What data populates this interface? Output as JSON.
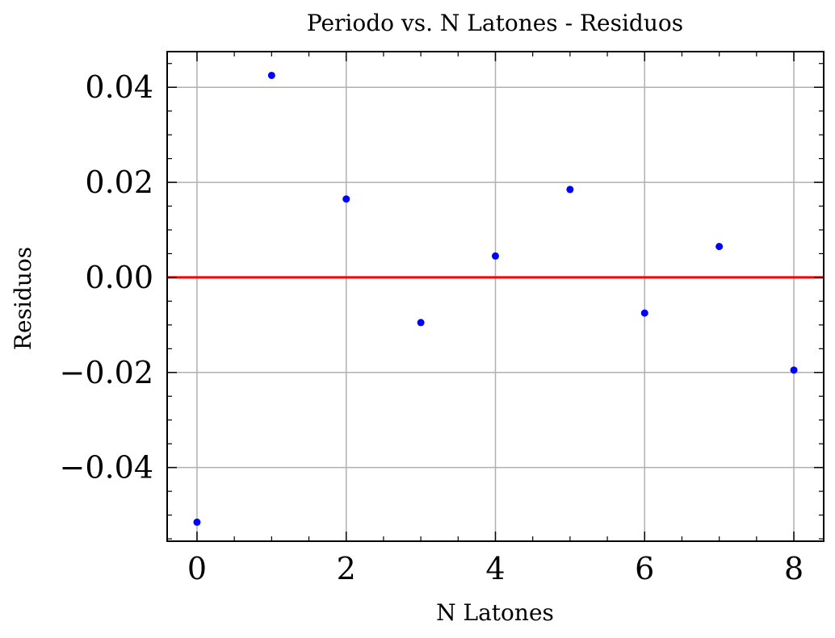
{
  "chart_data": {
    "type": "scatter",
    "title": "Periodo vs. N Latones - Residuos",
    "xlabel": "N Latones",
    "ylabel": "Residuos",
    "xlim": [
      -0.4,
      8.4
    ],
    "ylim": [
      -0.0555,
      0.0475
    ],
    "xticks": [
      0,
      2,
      4,
      6,
      8
    ],
    "xtick_labels": [
      "0",
      "2",
      "4",
      "6",
      "8"
    ],
    "yticks": [
      -0.04,
      -0.02,
      0.0,
      0.02,
      0.04
    ],
    "ytick_labels": [
      "−0.04",
      "−0.02",
      "0.00",
      "0.02",
      "0.04"
    ],
    "grid": true,
    "reference_line": {
      "y": 0.0,
      "color": "#ff0000"
    },
    "series": [
      {
        "color": "#0000ff",
        "x": [
          0,
          1,
          2,
          3,
          4,
          5,
          6,
          7,
          8
        ],
        "y": [
          -0.0515,
          0.0425,
          0.0165,
          -0.0095,
          0.0045,
          0.0185,
          -0.0075,
          0.0065,
          -0.0195
        ]
      }
    ]
  }
}
